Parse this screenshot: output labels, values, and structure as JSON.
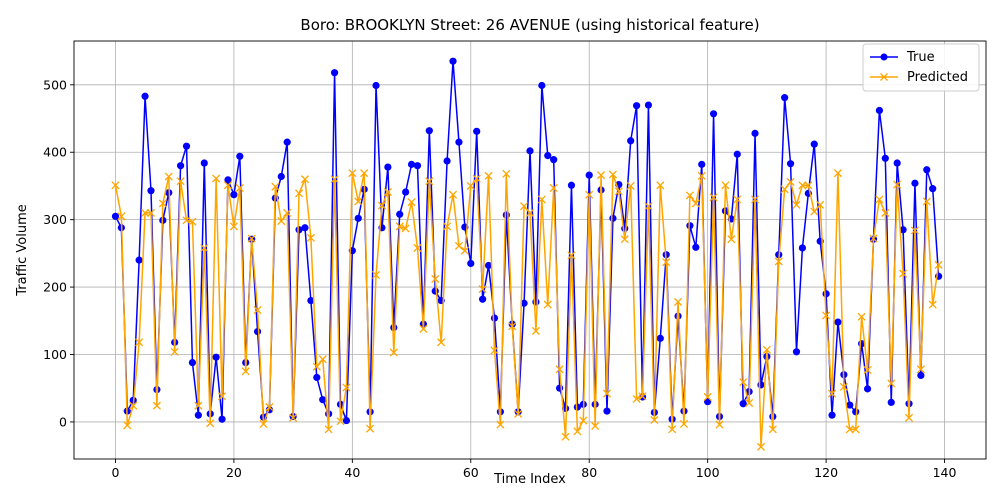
{
  "chart_data": {
    "type": "line",
    "title": "Boro: BROOKLYN Street: 26 AVENUE (using historical feature)",
    "xlabel": "Time Index",
    "ylabel": "Traffic Volume",
    "xlim": [
      -7,
      147
    ],
    "ylim": [
      -55,
      565
    ],
    "xticks": [
      0,
      20,
      40,
      60,
      80,
      100,
      120,
      140
    ],
    "yticks": [
      0,
      100,
      200,
      300,
      400,
      500
    ],
    "grid": true,
    "legend_position": "top-right",
    "series": [
      {
        "name": "True",
        "color": "#0000ff",
        "marker": "circle",
        "values": [
          305,
          288,
          16,
          32,
          240,
          483,
          343,
          48,
          299,
          340,
          118,
          380,
          409,
          88,
          10,
          384,
          12,
          96,
          4,
          359,
          337,
          394,
          88,
          271,
          134,
          7,
          18,
          332,
          364,
          415,
          8,
          285,
          288,
          180,
          66,
          33,
          12,
          518,
          26,
          2,
          254,
          302,
          345,
          15,
          499,
          288,
          378,
          140,
          308,
          341,
          382,
          380,
          145,
          432,
          194,
          180,
          387,
          535,
          415,
          289,
          235,
          431,
          182,
          232,
          154,
          15,
          307,
          145,
          15,
          176,
          402,
          178,
          499,
          395,
          389,
          50,
          20,
          351,
          22,
          26,
          366,
          26,
          344,
          16,
          302,
          352,
          287,
          417,
          469,
          37,
          470,
          14,
          124,
          248,
          4,
          157,
          16,
          291,
          259,
          382,
          30,
          457,
          8,
          313,
          301,
          397,
          27,
          45,
          428,
          55,
          97,
          8,
          248,
          481,
          383,
          104,
          258,
          339,
          412,
          268,
          190,
          10,
          148,
          70,
          25,
          15,
          116,
          49,
          271,
          462,
          391,
          29,
          384,
          285,
          27,
          354,
          69,
          374,
          346,
          216
        ]
      },
      {
        "name": "Predicted",
        "color": "#ffa500",
        "marker": "x",
        "values": [
          351,
          305,
          -5,
          24,
          118,
          310,
          310,
          24,
          324,
          364,
          104,
          357,
          299,
          297,
          24,
          258,
          -2,
          361,
          38,
          351,
          290,
          347,
          75,
          272,
          166,
          -3,
          22,
          349,
          298,
          310,
          6,
          339,
          360,
          273,
          82,
          93,
          -11,
          360,
          1,
          51,
          369,
          327,
          369,
          -10,
          218,
          321,
          341,
          103,
          290,
          287,
          326,
          258,
          138,
          357,
          212,
          118,
          290,
          337,
          261,
          254,
          350,
          361,
          197,
          365,
          106,
          -4,
          368,
          142,
          12,
          320,
          310,
          135,
          330,
          174,
          347,
          78,
          -22,
          247,
          -14,
          2,
          337,
          -6,
          366,
          42,
          367,
          342,
          271,
          350,
          34,
          38,
          320,
          3,
          351,
          237,
          -11,
          178,
          -3,
          336,
          324,
          365,
          37,
          333,
          -4,
          351,
          271,
          330,
          59,
          28,
          330,
          -37,
          107,
          -11,
          238,
          345,
          356,
          322,
          351,
          351,
          312,
          322,
          158,
          42,
          369,
          52,
          -11,
          -11,
          156,
          77,
          272,
          330,
          310,
          57,
          352,
          220,
          6,
          284,
          78,
          327,
          174,
          233
        ]
      }
    ]
  }
}
